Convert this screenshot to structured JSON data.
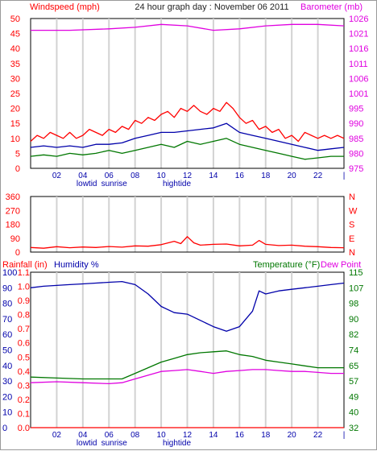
{
  "title": "24 hour graph day : November 06 2011",
  "colors": {
    "red": "#ff0000",
    "blue": "#0000aa",
    "green": "#007700",
    "magenta": "#e000e0",
    "grid": "#d2d2d2",
    "frame": "#000000"
  },
  "x_ticks": [
    "02",
    "04",
    "06",
    "08",
    "10",
    "12",
    "14",
    "16",
    "18",
    "20",
    "22"
  ],
  "x_last_tick": "|",
  "markers": {
    "lowtide": "lowtid",
    "sunrise": "sunrise",
    "hightide": "hightide"
  },
  "chart_data": [
    {
      "type": "line",
      "panel": "wind-barometer",
      "left_axis_label": "Windspeed (mph)",
      "right_axis_label": "Barometer (mb)",
      "left_ticks": [
        "50",
        "45",
        "40",
        "35",
        "30",
        "25",
        "20",
        "15",
        "10",
        "5",
        "0"
      ],
      "left_range": [
        0,
        50
      ],
      "right_ticks": [
        "1026",
        "1021",
        "1016",
        "1011",
        "1006",
        "1001",
        "995",
        "990",
        "985",
        "980",
        "975"
      ],
      "right_range": [
        975,
        1026
      ],
      "xlim": [
        0,
        24
      ],
      "series": [
        {
          "role": "gust",
          "color": "red",
          "points": [
            [
              0,
              9
            ],
            [
              0.5,
              11
            ],
            [
              1,
              10
            ],
            [
              1.5,
              12
            ],
            [
              2,
              11
            ],
            [
              2.5,
              10
            ],
            [
              3,
              12
            ],
            [
              3.5,
              10
            ],
            [
              4,
              11
            ],
            [
              4.5,
              13
            ],
            [
              5,
              12
            ],
            [
              5.5,
              11
            ],
            [
              6,
              13
            ],
            [
              6.5,
              12
            ],
            [
              7,
              14
            ],
            [
              7.5,
              13
            ],
            [
              8,
              16
            ],
            [
              8.5,
              15
            ],
            [
              9,
              17
            ],
            [
              9.5,
              16
            ],
            [
              10,
              18
            ],
            [
              10.5,
              19
            ],
            [
              11,
              17
            ],
            [
              11.5,
              20
            ],
            [
              12,
              19
            ],
            [
              12.5,
              21
            ],
            [
              13,
              19
            ],
            [
              13.5,
              18
            ],
            [
              14,
              20
            ],
            [
              14.5,
              19
            ],
            [
              15,
              22
            ],
            [
              15.5,
              20
            ],
            [
              16,
              17
            ],
            [
              16.5,
              15
            ],
            [
              17,
              16
            ],
            [
              17.5,
              13
            ],
            [
              18,
              14
            ],
            [
              18.5,
              12
            ],
            [
              19,
              13
            ],
            [
              19.5,
              10
            ],
            [
              20,
              11
            ],
            [
              20.5,
              9
            ],
            [
              21,
              12
            ],
            [
              21.5,
              11
            ],
            [
              22,
              10
            ],
            [
              22.5,
              11
            ],
            [
              23,
              10
            ],
            [
              23.5,
              11
            ],
            [
              24,
              10
            ]
          ]
        },
        {
          "role": "average",
          "color": "blue",
          "points": [
            [
              0,
              7
            ],
            [
              1,
              7.5
            ],
            [
              2,
              7
            ],
            [
              3,
              7.5
            ],
            [
              4,
              7
            ],
            [
              5,
              8
            ],
            [
              6,
              8
            ],
            [
              7,
              8.5
            ],
            [
              8,
              10
            ],
            [
              9,
              11
            ],
            [
              10,
              12
            ],
            [
              11,
              12
            ],
            [
              12,
              12.5
            ],
            [
              13,
              13
            ],
            [
              14,
              13.5
            ],
            [
              15,
              15
            ],
            [
              16,
              12
            ],
            [
              17,
              11
            ],
            [
              18,
              10
            ],
            [
              19,
              9
            ],
            [
              20,
              8
            ],
            [
              21,
              7
            ],
            [
              22,
              6
            ],
            [
              23,
              6.5
            ],
            [
              24,
              7
            ]
          ]
        },
        {
          "role": "lull",
          "color": "green",
          "points": [
            [
              0,
              4
            ],
            [
              1,
              4.5
            ],
            [
              2,
              4
            ],
            [
              3,
              5
            ],
            [
              4,
              4.5
            ],
            [
              5,
              5
            ],
            [
              6,
              6
            ],
            [
              7,
              5
            ],
            [
              8,
              6
            ],
            [
              9,
              7
            ],
            [
              10,
              8
            ],
            [
              11,
              7
            ],
            [
              12,
              9
            ],
            [
              13,
              8
            ],
            [
              14,
              9
            ],
            [
              15,
              10
            ],
            [
              16,
              8
            ],
            [
              17,
              7
            ],
            [
              18,
              6
            ],
            [
              19,
              5
            ],
            [
              20,
              4
            ],
            [
              21,
              3
            ],
            [
              22,
              3.5
            ],
            [
              23,
              4
            ],
            [
              24,
              4
            ]
          ]
        },
        {
          "role": "barometer",
          "color": "magenta",
          "points": [
            [
              0,
              1022
            ],
            [
              3,
              1022
            ],
            [
              6,
              1022.5
            ],
            [
              8,
              1023
            ],
            [
              10,
              1024
            ],
            [
              12,
              1023.5
            ],
            [
              14,
              1022
            ],
            [
              16,
              1022.5
            ],
            [
              18,
              1023.5
            ],
            [
              20,
              1024
            ],
            [
              22,
              1024
            ],
            [
              24,
              1023.5
            ]
          ]
        }
      ]
    },
    {
      "type": "line",
      "panel": "wind-direction",
      "left_ticks": [
        "360",
        "270",
        "180",
        "90",
        "0"
      ],
      "left_range": [
        0,
        360
      ],
      "right_labels": [
        "N",
        "W",
        "S",
        "E",
        "N"
      ],
      "xlim": [
        0,
        24
      ],
      "series": [
        {
          "role": "direction",
          "color": "red",
          "points": [
            [
              0,
              30
            ],
            [
              1,
              25
            ],
            [
              2,
              35
            ],
            [
              3,
              28
            ],
            [
              4,
              33
            ],
            [
              5,
              30
            ],
            [
              6,
              36
            ],
            [
              7,
              32
            ],
            [
              8,
              40
            ],
            [
              9,
              38
            ],
            [
              10,
              48
            ],
            [
              11,
              70
            ],
            [
              11.5,
              55
            ],
            [
              12,
              100
            ],
            [
              12.5,
              60
            ],
            [
              13,
              45
            ],
            [
              14,
              50
            ],
            [
              15,
              52
            ],
            [
              16,
              40
            ],
            [
              17,
              45
            ],
            [
              17.5,
              75
            ],
            [
              18,
              50
            ],
            [
              19,
              42
            ],
            [
              20,
              45
            ],
            [
              21,
              38
            ],
            [
              22,
              35
            ],
            [
              23,
              30
            ],
            [
              24,
              28
            ]
          ]
        }
      ]
    },
    {
      "type": "line",
      "panel": "rain-humidity-temperature",
      "left_axis_label": "Rainfall (in)",
      "mid_axis_label": "Humidity %",
      "right_axis_label": "Temperature (°F)",
      "right_axis_label2": "Dew Point",
      "left_ticks_outer": [
        "100",
        "90",
        "80",
        "70",
        "60",
        "50",
        "40",
        "30",
        "20",
        "10",
        "0"
      ],
      "left_ticks_inner": [
        "1.1",
        "1.0",
        "0.9",
        "0.8",
        "0.7",
        "0.6",
        "0.5",
        "0.4",
        "0.3",
        "0.2",
        "0.1",
        "0.0"
      ],
      "humidity_range": [
        0,
        100
      ],
      "right_ticks": [
        "115",
        "107",
        "98",
        "90",
        "82",
        "74",
        "65",
        "57",
        "49",
        "40",
        "32"
      ],
      "temperature_range": [
        32,
        115
      ],
      "xlim": [
        0,
        24
      ],
      "series": [
        {
          "role": "humidity",
          "color": "blue",
          "points": [
            [
              0,
              90
            ],
            [
              1,
              91
            ],
            [
              2,
              91.5
            ],
            [
              3,
              92
            ],
            [
              4,
              92.5
            ],
            [
              5,
              93
            ],
            [
              6,
              93.5
            ],
            [
              7,
              94
            ],
            [
              8,
              92
            ],
            [
              9,
              86
            ],
            [
              10,
              78
            ],
            [
              11,
              74
            ],
            [
              12,
              73
            ],
            [
              13,
              69
            ],
            [
              14,
              65
            ],
            [
              15,
              62
            ],
            [
              16,
              65
            ],
            [
              17,
              75
            ],
            [
              17.5,
              88
            ],
            [
              18,
              86
            ],
            [
              19,
              88
            ],
            [
              20,
              89
            ],
            [
              21,
              90
            ],
            [
              22,
              91
            ],
            [
              23,
              92
            ],
            [
              24,
              93
            ]
          ]
        },
        {
          "role": "temperature",
          "color": "green",
          "points": [
            [
              0,
              59
            ],
            [
              2,
              58.5
            ],
            [
              4,
              58
            ],
            [
              6,
              58
            ],
            [
              7,
              58
            ],
            [
              8,
              61
            ],
            [
              9,
              64
            ],
            [
              10,
              67
            ],
            [
              11,
              69
            ],
            [
              12,
              71
            ],
            [
              13,
              72
            ],
            [
              14,
              72.5
            ],
            [
              15,
              73
            ],
            [
              16,
              71
            ],
            [
              17,
              70
            ],
            [
              18,
              68
            ],
            [
              19,
              67
            ],
            [
              20,
              66
            ],
            [
              21,
              65
            ],
            [
              22,
              64
            ],
            [
              23,
              64
            ],
            [
              24,
              64
            ]
          ]
        },
        {
          "role": "dew_point",
          "color": "magenta",
          "points": [
            [
              0,
              56
            ],
            [
              2,
              56.5
            ],
            [
              4,
              56
            ],
            [
              6,
              55.5
            ],
            [
              7,
              56
            ],
            [
              8,
              58
            ],
            [
              9,
              60
            ],
            [
              10,
              62
            ],
            [
              11,
              62.5
            ],
            [
              12,
              63
            ],
            [
              13,
              62
            ],
            [
              14,
              61
            ],
            [
              15,
              62
            ],
            [
              16,
              62.5
            ],
            [
              17,
              63
            ],
            [
              18,
              63
            ],
            [
              19,
              62.5
            ],
            [
              20,
              62
            ],
            [
              21,
              62
            ],
            [
              22,
              61.5
            ],
            [
              23,
              61
            ],
            [
              24,
              61
            ]
          ]
        },
        {
          "role": "rainfall",
          "color": "red",
          "points": [
            [
              0,
              0
            ],
            [
              24,
              0
            ]
          ]
        }
      ]
    }
  ]
}
